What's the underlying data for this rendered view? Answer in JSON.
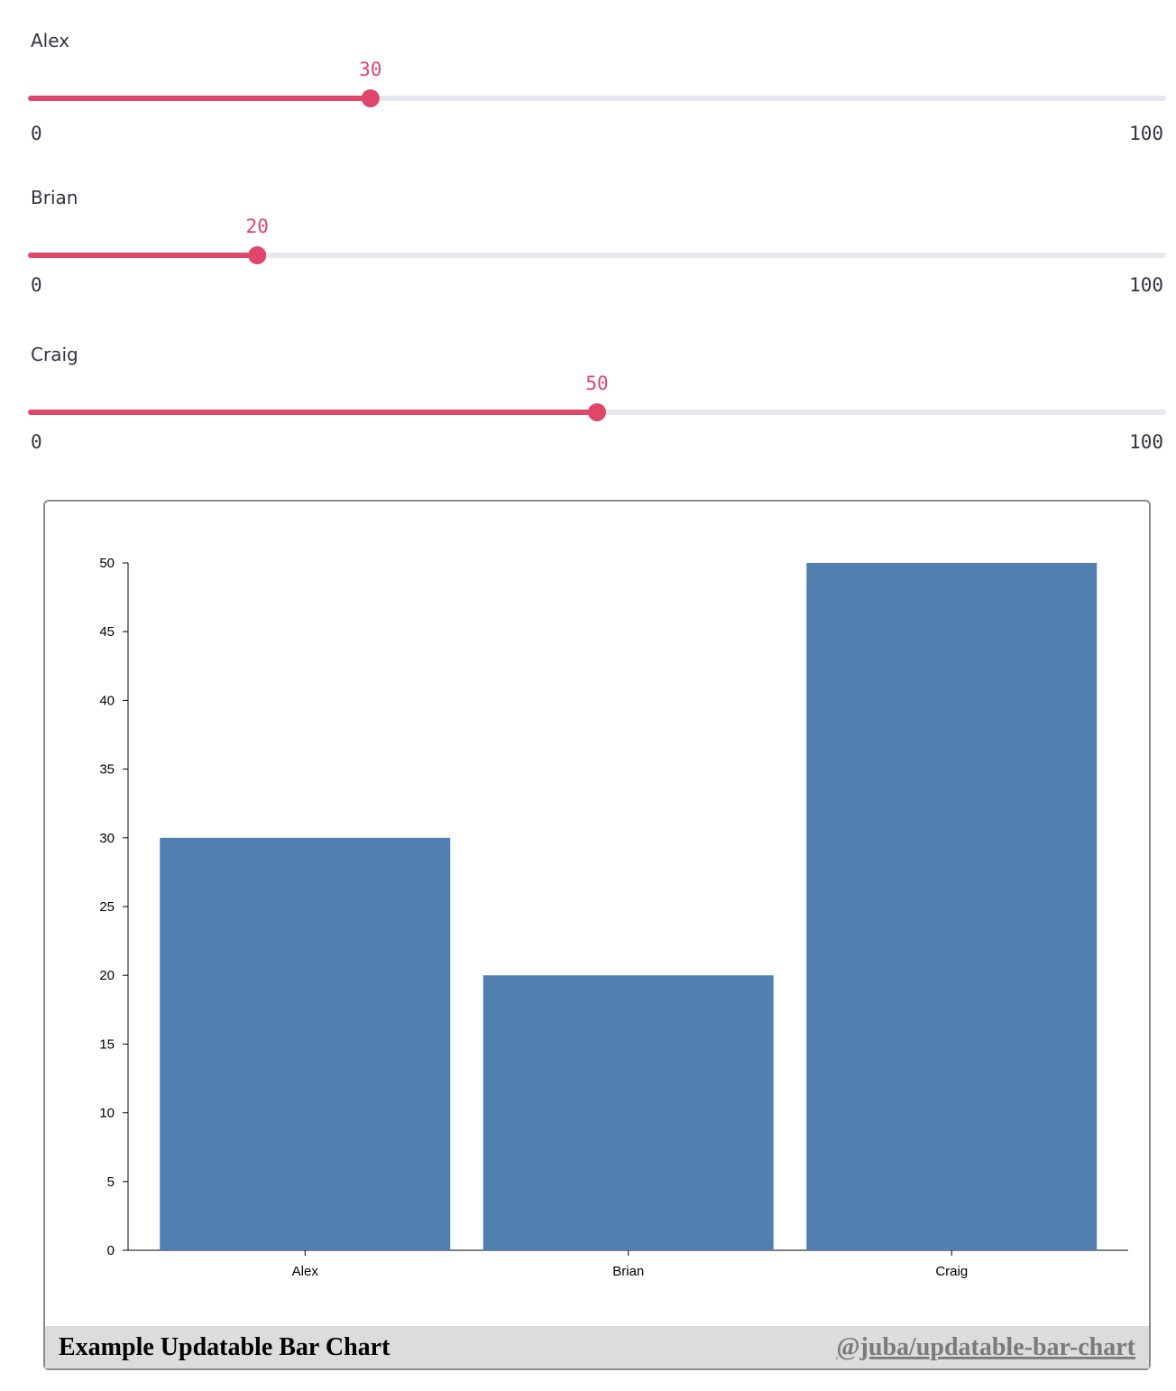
{
  "sliders": [
    {
      "label": "Alex",
      "value": 30,
      "min": 0,
      "max": 100
    },
    {
      "label": "Brian",
      "value": 20,
      "min": 0,
      "max": 100
    },
    {
      "label": "Craig",
      "value": 50,
      "min": 0,
      "max": 100
    }
  ],
  "chart_data": {
    "type": "bar",
    "categories": [
      "Alex",
      "Brian",
      "Craig"
    ],
    "values": [
      30,
      20,
      50
    ],
    "color": "#5180b0",
    "ylim": [
      0,
      50
    ],
    "yticks": [
      0,
      5,
      10,
      15,
      20,
      25,
      30,
      35,
      40,
      45,
      50
    ]
  },
  "footer": {
    "title": "Example Updatable Bar Chart",
    "link": "@juba/updatable-bar-chart"
  }
}
